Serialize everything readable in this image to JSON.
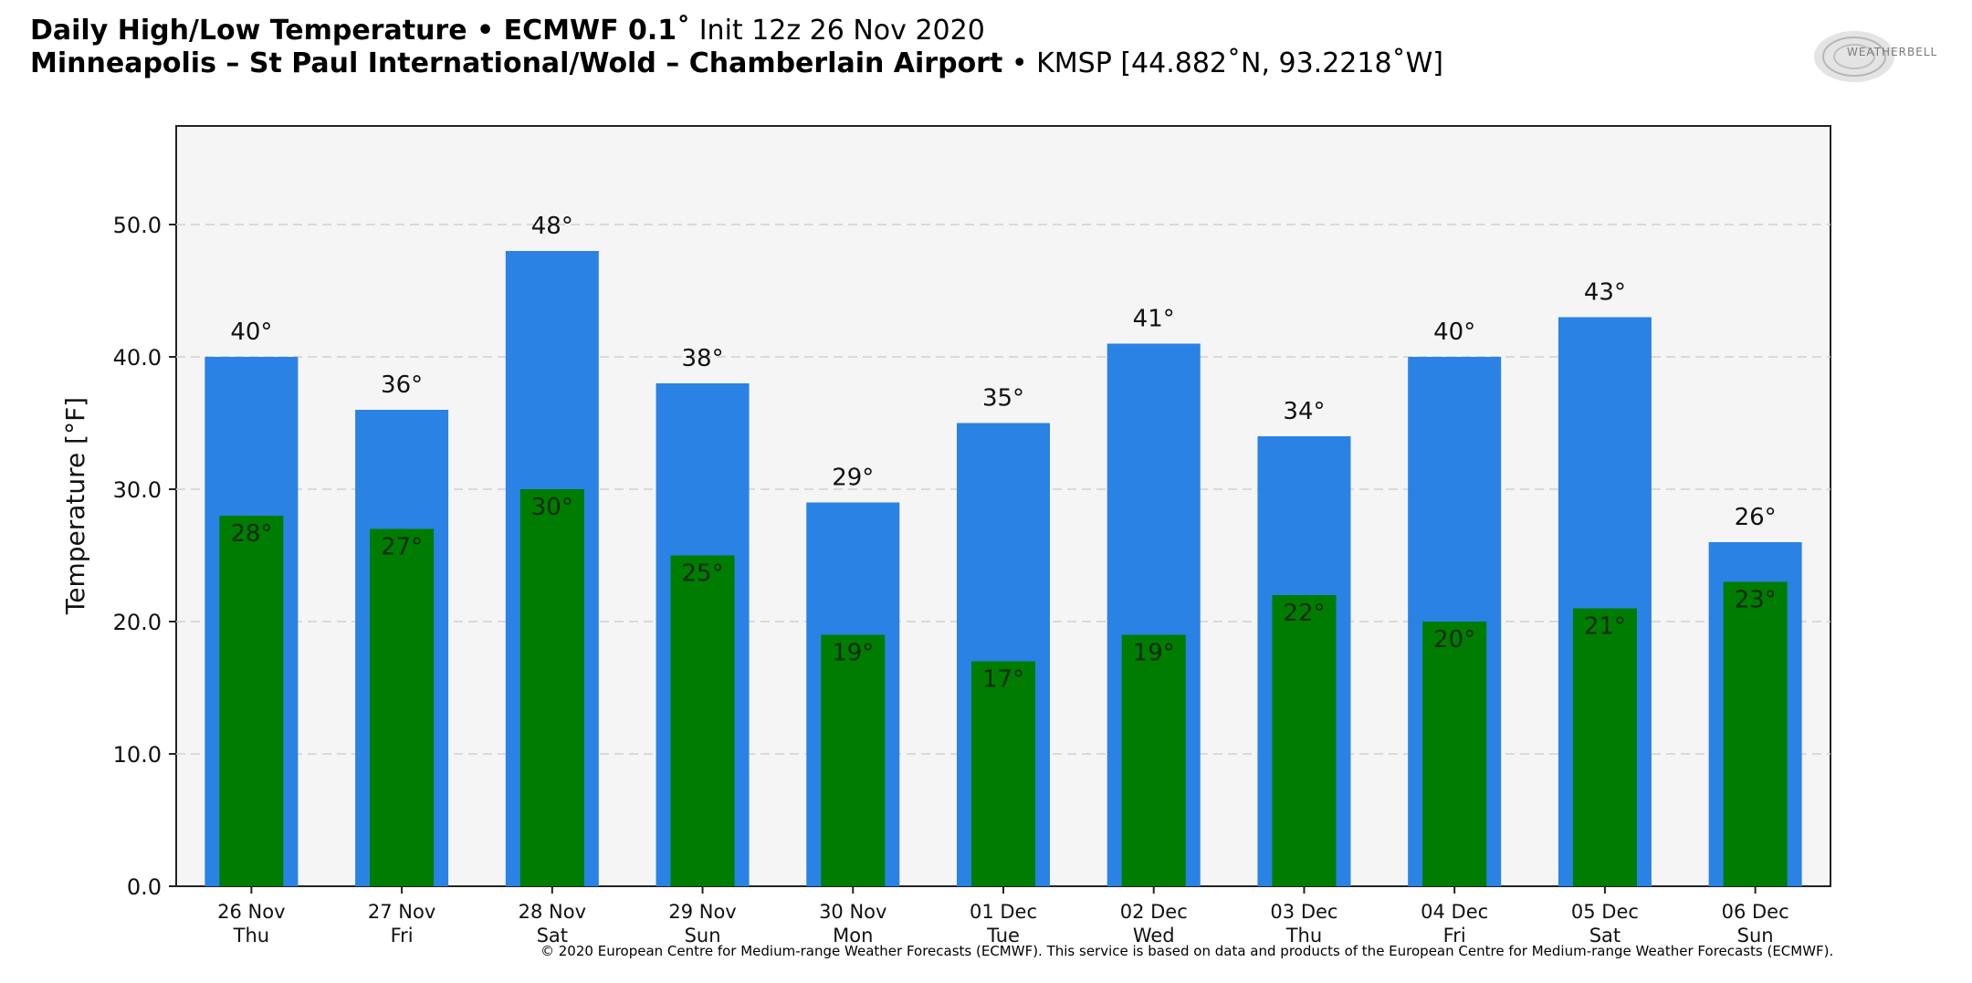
{
  "header": {
    "title_bold": "Daily High/Low Temperature • ECMWF 0.1˚",
    "title_init": " Init 12z 26 Nov 2020",
    "station_bold": "Minneapolis – St Paul International/Wold – Chamberlain Airport",
    "station_meta": " • KMSP [44.882˚N, 93.2218˚W]"
  },
  "logo": {
    "icon": "weatherbell-logo",
    "text": "WEATHERBELL"
  },
  "footer": {
    "copyright": "© 2020 European Centre for Medium-range Weather Forecasts (ECMWF). This service is based on data and products of the European Centre for Medium-range Weather Forecasts (ECMWF)."
  },
  "chart_data": {
    "type": "bar",
    "title": "Daily High/Low Temperature",
    "xlabel": "",
    "ylabel": "Temperature [°F]",
    "ylim": [
      0,
      57
    ],
    "yticks": [
      0,
      10,
      20,
      30,
      40,
      50
    ],
    "ytick_labels": [
      "0.0",
      "10.0",
      "20.0",
      "30.0",
      "40.0",
      "50.0"
    ],
    "grid": "horizontal dashed",
    "categories": [
      "26 Nov",
      "27 Nov",
      "28 Nov",
      "29 Nov",
      "30 Nov",
      "01 Dec",
      "02 Dec",
      "03 Dec",
      "04 Dec",
      "05 Dec",
      "06 Dec"
    ],
    "days": [
      "Thu",
      "Fri",
      "Sat",
      "Sun",
      "Mon",
      "Tue",
      "Wed",
      "Thu",
      "Fri",
      "Sat",
      "Sun"
    ],
    "series": [
      {
        "color": "#2a82e4",
        "values": [
          40,
          36,
          48,
          38,
          29,
          35,
          41,
          34,
          40,
          43,
          26
        ],
        "labels": [
          "40°",
          "36°",
          "48°",
          "38°",
          "29°",
          "35°",
          "41°",
          "34°",
          "40°",
          "43°",
          "26°"
        ]
      },
      {
        "color": "#007c00",
        "values": [
          28,
          27,
          30,
          25,
          19,
          17,
          19,
          22,
          20,
          21,
          23
        ],
        "labels": [
          "28°",
          "27°",
          "30°",
          "25°",
          "19°",
          "17°",
          "19°",
          "22°",
          "20°",
          "21°",
          "23°"
        ]
      }
    ]
  }
}
